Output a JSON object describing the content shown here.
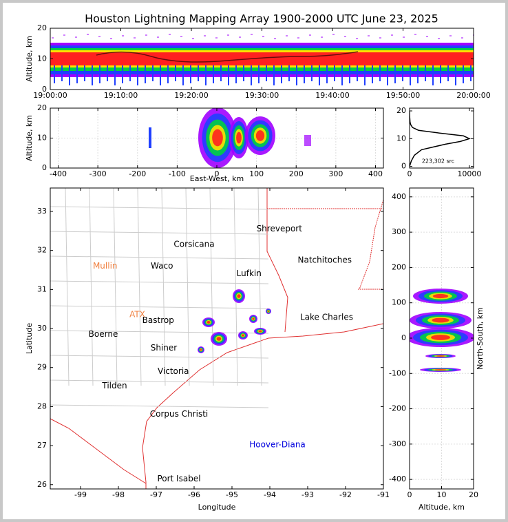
{
  "chart_data": [
    {
      "type": "density",
      "title": "Houston Lightning Mapping Array 1900-2000 UTC June 23, 2025",
      "ylabel": "Altitude, km",
      "xlim": [
        0,
        60
      ],
      "xticks": [
        {
          "value": 0,
          "label": "19:00:00"
        },
        {
          "value": 10,
          "label": "19:10:00"
        },
        {
          "value": 20,
          "label": "19:20:00"
        },
        {
          "value": 30,
          "label": "19:30:00"
        },
        {
          "value": 40,
          "label": "19:40:00"
        },
        {
          "value": 50,
          "label": "19:50:00"
        },
        {
          "value": 60,
          "label": "20:00:00"
        }
      ],
      "ylim": [
        0,
        20
      ],
      "yticks": [
        0,
        10,
        20
      ],
      "grid": false
    },
    {
      "type": "density",
      "xlabel": "East-West, km",
      "ylabel": "Altitude, km",
      "xlim": [
        -420,
        420
      ],
      "xticks": [
        -400,
        -300,
        -200,
        -100,
        0,
        100,
        200,
        300,
        400
      ],
      "ylim": [
        0,
        20
      ],
      "yticks": [
        0,
        10,
        20
      ],
      "grid": true
    },
    {
      "type": "line",
      "annotation": "223,302 src",
      "xlim": [
        0,
        10700
      ],
      "xticks": [
        0,
        10000
      ],
      "ylim": [
        -0.6,
        21
      ],
      "yticks": [
        0,
        10,
        20
      ],
      "grid": false,
      "series": [
        {
          "color": "#000000",
          "x": [
            0,
            300,
            800,
            2000,
            6000,
            8500,
            10000,
            9000,
            5000,
            1500,
            500,
            200,
            80,
            20,
            5
          ],
          "values": [
            0,
            2,
            4,
            6,
            8,
            9,
            10,
            11,
            12,
            13,
            14,
            15,
            16,
            18,
            20
          ]
        }
      ]
    },
    {
      "type": "map",
      "xlabel": "Longitude",
      "ylabel": "Latitude",
      "xlim": [
        -99.8,
        -91
      ],
      "xticks": [
        -99,
        -98,
        -97,
        -96,
        -95,
        -94,
        -93,
        -92,
        -91
      ],
      "ylim": [
        25.89,
        33.6
      ],
      "yticks": [
        26,
        27,
        28,
        29,
        30,
        31,
        32,
        33
      ],
      "grid": false,
      "annotations": [
        {
          "text": "Shreveport",
          "x": -93.75,
          "y": 32.55,
          "color": "#000000"
        },
        {
          "text": "Corsicana",
          "x": -96.0,
          "y": 32.15,
          "color": "#000000"
        },
        {
          "text": "Mullin",
          "x": -98.35,
          "y": 31.6,
          "color": "#f08040"
        },
        {
          "text": "Waco",
          "x": -96.85,
          "y": 31.6,
          "color": "#000000"
        },
        {
          "text": "Natchitoches",
          "x": -92.55,
          "y": 31.75,
          "color": "#000000"
        },
        {
          "text": "Lufkin",
          "x": -94.55,
          "y": 31.4,
          "color": "#000000"
        },
        {
          "text": "ATX",
          "x": -97.5,
          "y": 30.35,
          "color": "#f08040"
        },
        {
          "text": "Bastrop",
          "x": -96.95,
          "y": 30.2,
          "color": "#000000"
        },
        {
          "text": "Lake Charles",
          "x": -92.5,
          "y": 30.28,
          "color": "#000000"
        },
        {
          "text": "Boerne",
          "x": -98.4,
          "y": 29.85,
          "color": "#000000"
        },
        {
          "text": "Shiner",
          "x": -96.8,
          "y": 29.5,
          "color": "#000000"
        },
        {
          "text": "Victoria",
          "x": -96.55,
          "y": 28.9,
          "color": "#000000"
        },
        {
          "text": "Tilden",
          "x": -98.1,
          "y": 28.53,
          "color": "#000000"
        },
        {
          "text": "Corpus Christi",
          "x": -96.4,
          "y": 27.8,
          "color": "#000000"
        },
        {
          "text": "Hoover-Diana",
          "x": -93.8,
          "y": 27.02,
          "color": "#0000dd"
        },
        {
          "text": "Port Isabel",
          "x": -96.4,
          "y": 26.15,
          "color": "#000000"
        }
      ]
    },
    {
      "type": "density",
      "xlabel": "Altitude, km",
      "ylabel": "North-South, km",
      "ylabel_side": "right",
      "xlim": [
        0,
        20
      ],
      "xticks": [
        0,
        10,
        20
      ],
      "ylim": [
        -427,
        425
      ],
      "yticks": [
        -400,
        -300,
        -200,
        -100,
        0,
        100,
        200,
        300,
        400
      ],
      "grid": true
    }
  ]
}
